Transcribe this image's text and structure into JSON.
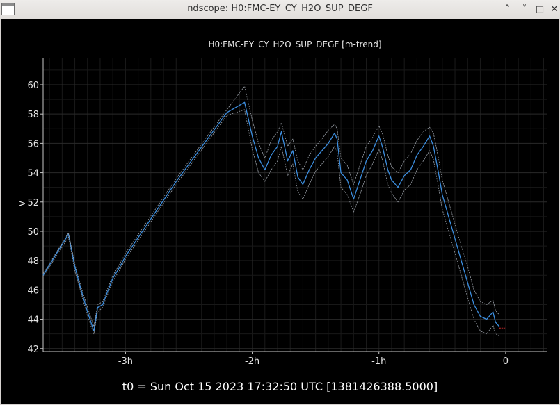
{
  "window": {
    "title": "ndscope: H0:FMC-EY_CY_H2O_SUP_DEGF"
  },
  "window_controls": {
    "minimize": "˄",
    "restore": "˅",
    "maximize": "□",
    "close": "✕"
  },
  "status": {
    "t0_text": "t0 = Sun Oct 15 2023 17:32:50 UTC [1381426388.5000]"
  },
  "colors": {
    "background": "#000000",
    "mean_line": "#3d8fe0",
    "envelope": "#9aa0a8",
    "tail_marker": "#e03030",
    "axis": "#c8c8c8"
  },
  "chart_data": {
    "type": "line",
    "title": "H0:FMC-EY_CY_H2O_SUP_DEGF [m-trend]",
    "ylabel": "V",
    "xlabel": "",
    "x_unit": "hours relative to t0",
    "xlim": [
      -3.65,
      0.33
    ],
    "ylim": [
      41.8,
      61.8
    ],
    "xticks": [
      {
        "value": -3,
        "label": "-3h"
      },
      {
        "value": -2,
        "label": "-2h"
      },
      {
        "value": -1,
        "label": "-1h"
      },
      {
        "value": 0,
        "label": "0"
      }
    ],
    "yticks": [
      42,
      44,
      46,
      48,
      50,
      52,
      54,
      56,
      58,
      60
    ],
    "grid": true,
    "legend": "none",
    "series": [
      {
        "role": "mean",
        "x": [
          -3.65,
          -3.45,
          -3.4,
          -3.35,
          -3.3,
          -3.25,
          -3.22,
          -3.18,
          -3.15,
          -3.1,
          -3.05,
          -3.0,
          -2.6,
          -2.2,
          -2.06,
          -2.0,
          -1.95,
          -1.9,
          -1.85,
          -1.8,
          -1.77,
          -1.72,
          -1.68,
          -1.64,
          -1.6,
          -1.55,
          -1.5,
          -1.45,
          -1.4,
          -1.35,
          -1.33,
          -1.3,
          -1.25,
          -1.2,
          -1.15,
          -1.1,
          -1.05,
          -1.0,
          -0.97,
          -0.93,
          -0.9,
          -0.85,
          -0.8,
          -0.75,
          -0.7,
          -0.65,
          -0.6,
          -0.57,
          -0.53,
          -0.5,
          -0.45,
          -0.4,
          -0.35,
          -0.3,
          -0.25,
          -0.2,
          -0.15,
          -0.1,
          -0.08,
          -0.05
        ],
        "y": [
          47.0,
          49.8,
          47.6,
          46.0,
          44.5,
          43.2,
          44.8,
          45.0,
          45.7,
          46.8,
          47.5,
          48.3,
          53.4,
          58.1,
          58.8,
          56.5,
          55.0,
          54.2,
          55.2,
          55.8,
          56.8,
          54.8,
          55.5,
          53.7,
          53.2,
          54.2,
          55.0,
          55.5,
          56.0,
          56.7,
          56.3,
          54.0,
          53.5,
          52.2,
          53.5,
          54.8,
          55.5,
          56.5,
          55.7,
          54.2,
          53.5,
          53.0,
          53.8,
          54.2,
          55.2,
          55.8,
          56.5,
          55.8,
          54.0,
          52.5,
          51.0,
          49.5,
          48.0,
          46.5,
          45.0,
          44.2,
          44.0,
          44.5,
          43.8,
          43.5
        ]
      },
      {
        "role": "max",
        "x": [
          -3.65,
          -3.45,
          -3.4,
          -3.35,
          -3.3,
          -3.25,
          -3.22,
          -3.18,
          -3.15,
          -3.1,
          -3.05,
          -3.0,
          -2.6,
          -2.2,
          -2.06,
          -2.0,
          -1.95,
          -1.9,
          -1.85,
          -1.8,
          -1.77,
          -1.72,
          -1.68,
          -1.64,
          -1.6,
          -1.55,
          -1.5,
          -1.45,
          -1.4,
          -1.35,
          -1.33,
          -1.3,
          -1.25,
          -1.2,
          -1.15,
          -1.1,
          -1.05,
          -1.0,
          -0.97,
          -0.93,
          -0.9,
          -0.85,
          -0.8,
          -0.75,
          -0.7,
          -0.65,
          -0.6,
          -0.57,
          -0.53,
          -0.5,
          -0.45,
          -0.4,
          -0.35,
          -0.3,
          -0.25,
          -0.2,
          -0.15,
          -0.1,
          -0.08,
          -0.05
        ],
        "y": [
          47.1,
          49.9,
          47.8,
          46.2,
          44.8,
          43.5,
          45.0,
          45.2,
          45.9,
          47.0,
          47.7,
          48.5,
          53.6,
          58.3,
          59.9,
          57.6,
          56.0,
          55.0,
          56.2,
          56.8,
          57.4,
          55.8,
          56.3,
          54.8,
          54.2,
          55.2,
          55.8,
          56.3,
          56.9,
          57.3,
          57.0,
          55.0,
          54.5,
          53.2,
          54.5,
          55.8,
          56.4,
          57.2,
          56.6,
          55.2,
          54.4,
          54.0,
          54.8,
          55.3,
          56.2,
          56.8,
          57.1,
          56.7,
          55.0,
          53.5,
          52.0,
          50.5,
          49.0,
          47.6,
          46.0,
          45.2,
          45.0,
          45.3,
          44.6,
          44.3
        ]
      },
      {
        "role": "min",
        "x": [
          -3.65,
          -3.45,
          -3.4,
          -3.35,
          -3.3,
          -3.25,
          -3.22,
          -3.18,
          -3.15,
          -3.1,
          -3.05,
          -3.0,
          -2.6,
          -2.2,
          -2.06,
          -2.0,
          -1.95,
          -1.9,
          -1.85,
          -1.8,
          -1.77,
          -1.72,
          -1.68,
          -1.64,
          -1.6,
          -1.55,
          -1.5,
          -1.45,
          -1.4,
          -1.35,
          -1.33,
          -1.3,
          -1.25,
          -1.2,
          -1.15,
          -1.1,
          -1.05,
          -1.0,
          -0.97,
          -0.93,
          -0.9,
          -0.85,
          -0.8,
          -0.75,
          -0.7,
          -0.65,
          -0.6,
          -0.57,
          -0.53,
          -0.5,
          -0.45,
          -0.4,
          -0.35,
          -0.3,
          -0.25,
          -0.2,
          -0.15,
          -0.1,
          -0.08,
          -0.05
        ],
        "y": [
          46.9,
          49.6,
          47.3,
          45.8,
          44.2,
          43.0,
          44.5,
          44.8,
          45.5,
          46.6,
          47.3,
          48.1,
          53.2,
          57.9,
          58.3,
          55.6,
          54.0,
          53.4,
          54.2,
          54.8,
          55.8,
          53.8,
          54.6,
          52.7,
          52.2,
          53.2,
          54.1,
          54.6,
          55.1,
          55.8,
          55.4,
          53.0,
          52.5,
          51.3,
          52.5,
          53.8,
          54.6,
          55.6,
          54.8,
          53.2,
          52.6,
          52.0,
          52.8,
          53.2,
          54.2,
          54.8,
          55.5,
          54.9,
          53.0,
          51.5,
          50.0,
          48.5,
          47.0,
          45.5,
          44.0,
          43.2,
          43.0,
          43.6,
          43.0,
          42.9
        ]
      }
    ],
    "tail": {
      "x": [
        -0.05,
        0.0
      ],
      "y": [
        43.4,
        43.4
      ]
    }
  }
}
